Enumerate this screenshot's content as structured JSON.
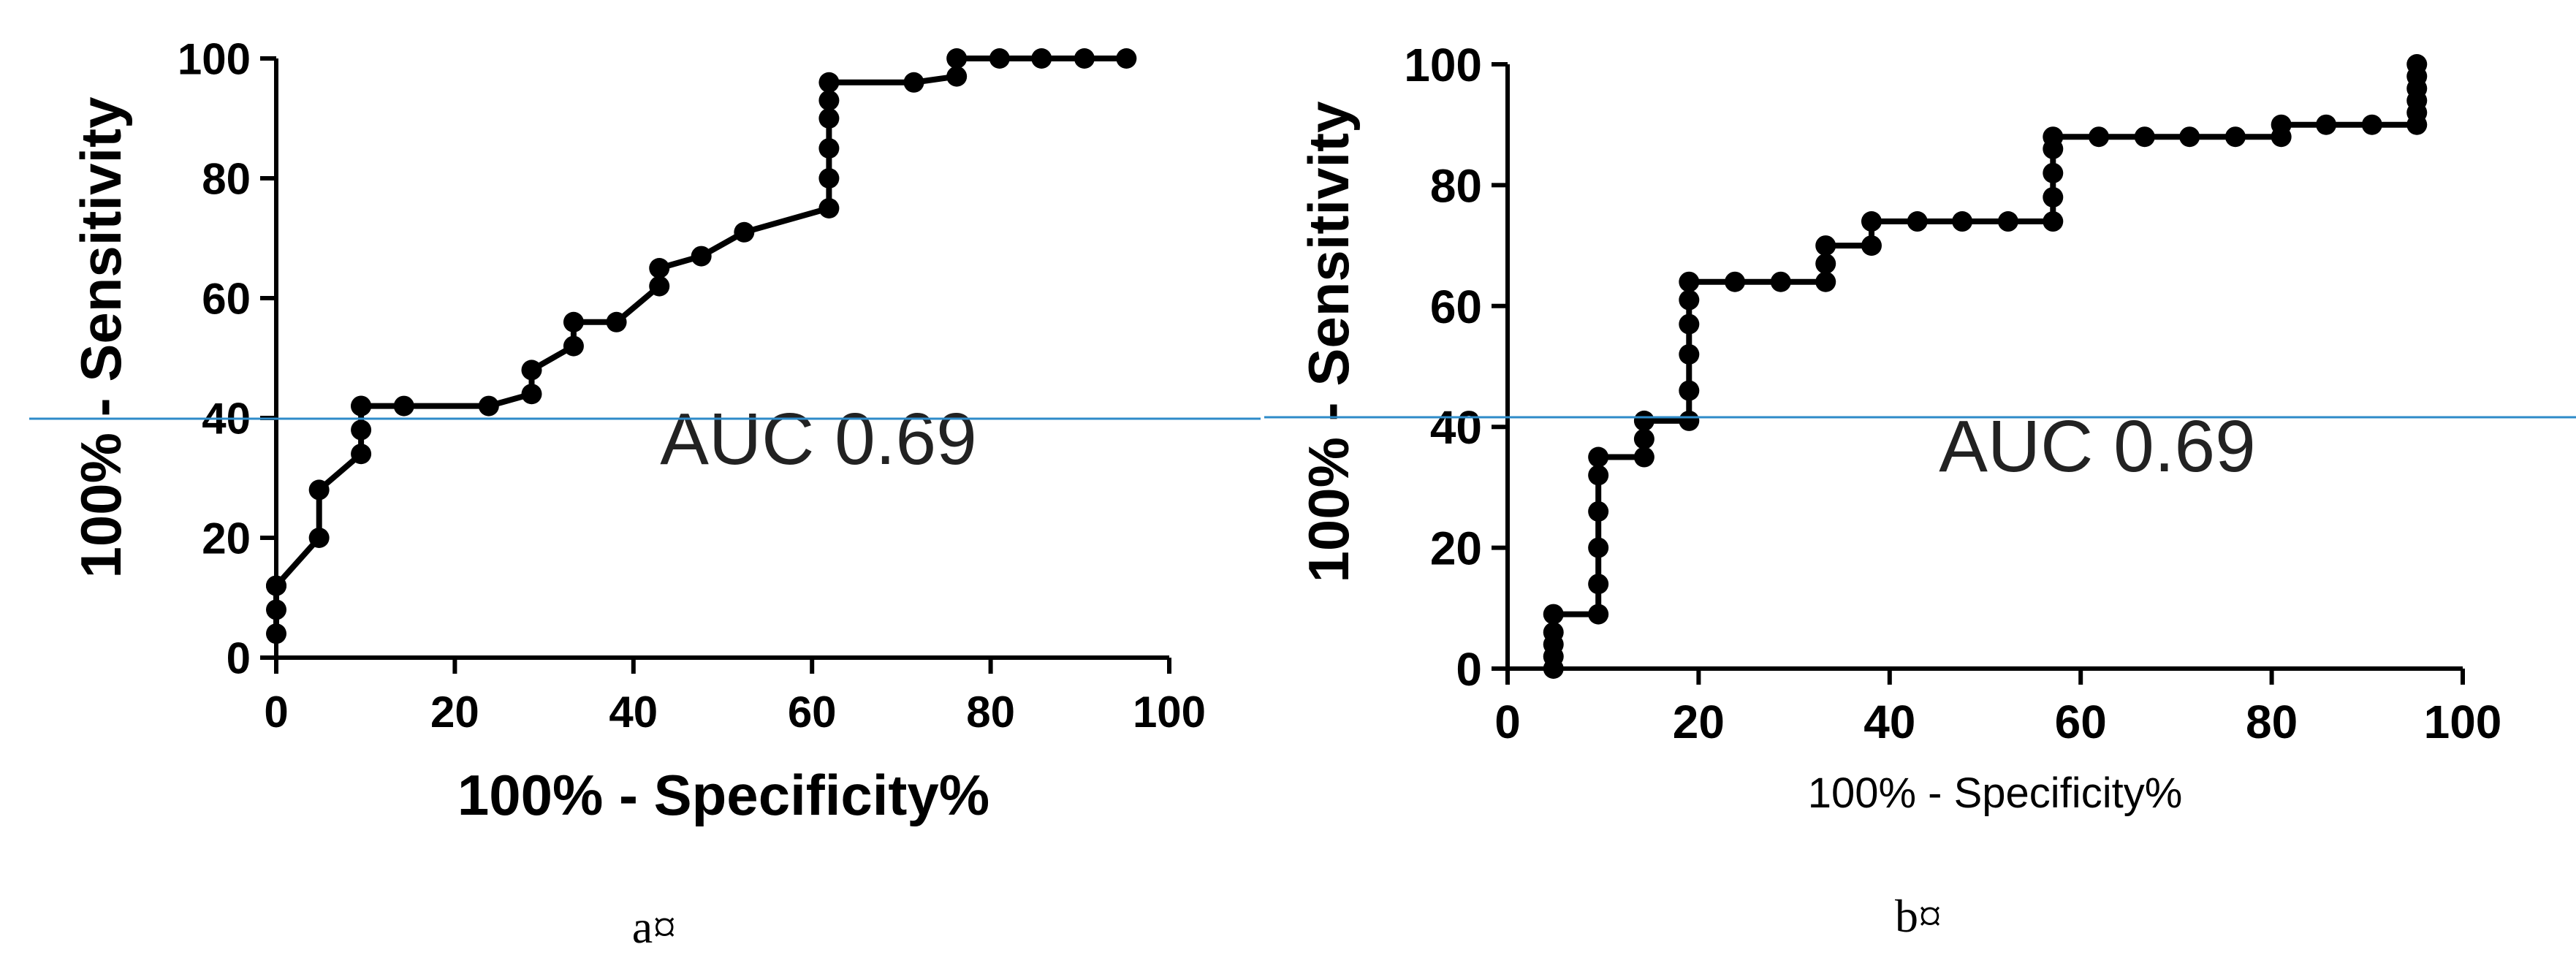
{
  "reference_line_color": "#2E8BC9",
  "chart_data": [
    {
      "type": "line",
      "panel_label": "a¤",
      "annotation": "AUC 0.69",
      "xlabel": "100% - Specificity%",
      "ylabel": "100% - Sensitivity",
      "xlim": [
        0,
        100
      ],
      "ylim": [
        0,
        100
      ],
      "xticks": [
        0,
        20,
        40,
        60,
        80,
        100
      ],
      "yticks": [
        0,
        20,
        40,
        60,
        80,
        100
      ],
      "grid": false,
      "series": [
        {
          "x": [
            0,
            0,
            0,
            0,
            4.8,
            4.8,
            9.5,
            9.5,
            9.5,
            9.5,
            14.3,
            23.8,
            28.6,
            28.6,
            33.3,
            33.3,
            38.1,
            42.9,
            42.9,
            47.6,
            52.4,
            61.9,
            61.9,
            61.9,
            61.9,
            61.9,
            61.9,
            71.4,
            76.2,
            76.2,
            81,
            85.7,
            90.5,
            95.2
          ],
          "y": [
            4,
            8,
            12,
            12,
            20,
            28,
            34,
            38,
            42,
            42,
            42,
            42,
            44,
            48,
            52,
            56,
            56,
            62,
            65,
            67,
            71,
            75,
            80,
            85,
            90,
            93,
            96,
            96,
            97,
            100,
            100,
            100,
            100,
            100
          ]
        }
      ]
    },
    {
      "type": "line",
      "panel_label": "b¤",
      "annotation": "AUC 0.69",
      "xlabel": "100%  - Specificity%",
      "ylabel": "100% - Sensitivity",
      "xlim": [
        0,
        100
      ],
      "ylim": [
        0,
        100
      ],
      "xticks": [
        0,
        20,
        40,
        60,
        80,
        100
      ],
      "yticks": [
        0,
        20,
        40,
        60,
        80,
        100
      ],
      "grid": false,
      "series": [
        {
          "x": [
            4.8,
            4.8,
            4.8,
            4.8,
            4.8,
            9.5,
            9.5,
            9.5,
            9.5,
            9.5,
            9.5,
            14.3,
            14.3,
            14.3,
            19,
            19,
            19,
            19,
            19,
            19,
            23.8,
            28.6,
            33.3,
            33.3,
            33.3,
            38.1,
            38.1,
            42.9,
            47.6,
            52.4,
            57.1,
            57.1,
            57.1,
            57.1,
            57.1,
            61.9,
            66.7,
            71.4,
            76.2,
            81,
            81,
            85.7,
            90.5,
            95.2,
            95.2,
            95.2,
            95.2,
            95.2,
            95.2
          ],
          "y": [
            0,
            2,
            4,
            6,
            9,
            9,
            14,
            20,
            26,
            32,
            35,
            35,
            38,
            41,
            41,
            46,
            52,
            57,
            61,
            64,
            64,
            64,
            64,
            67,
            70,
            70,
            74,
            74,
            74,
            74,
            74,
            78,
            82,
            86,
            88,
            88,
            88,
            88,
            88,
            88,
            90,
            90,
            90,
            90,
            92,
            94,
            96,
            98,
            100
          ]
        }
      ]
    }
  ]
}
